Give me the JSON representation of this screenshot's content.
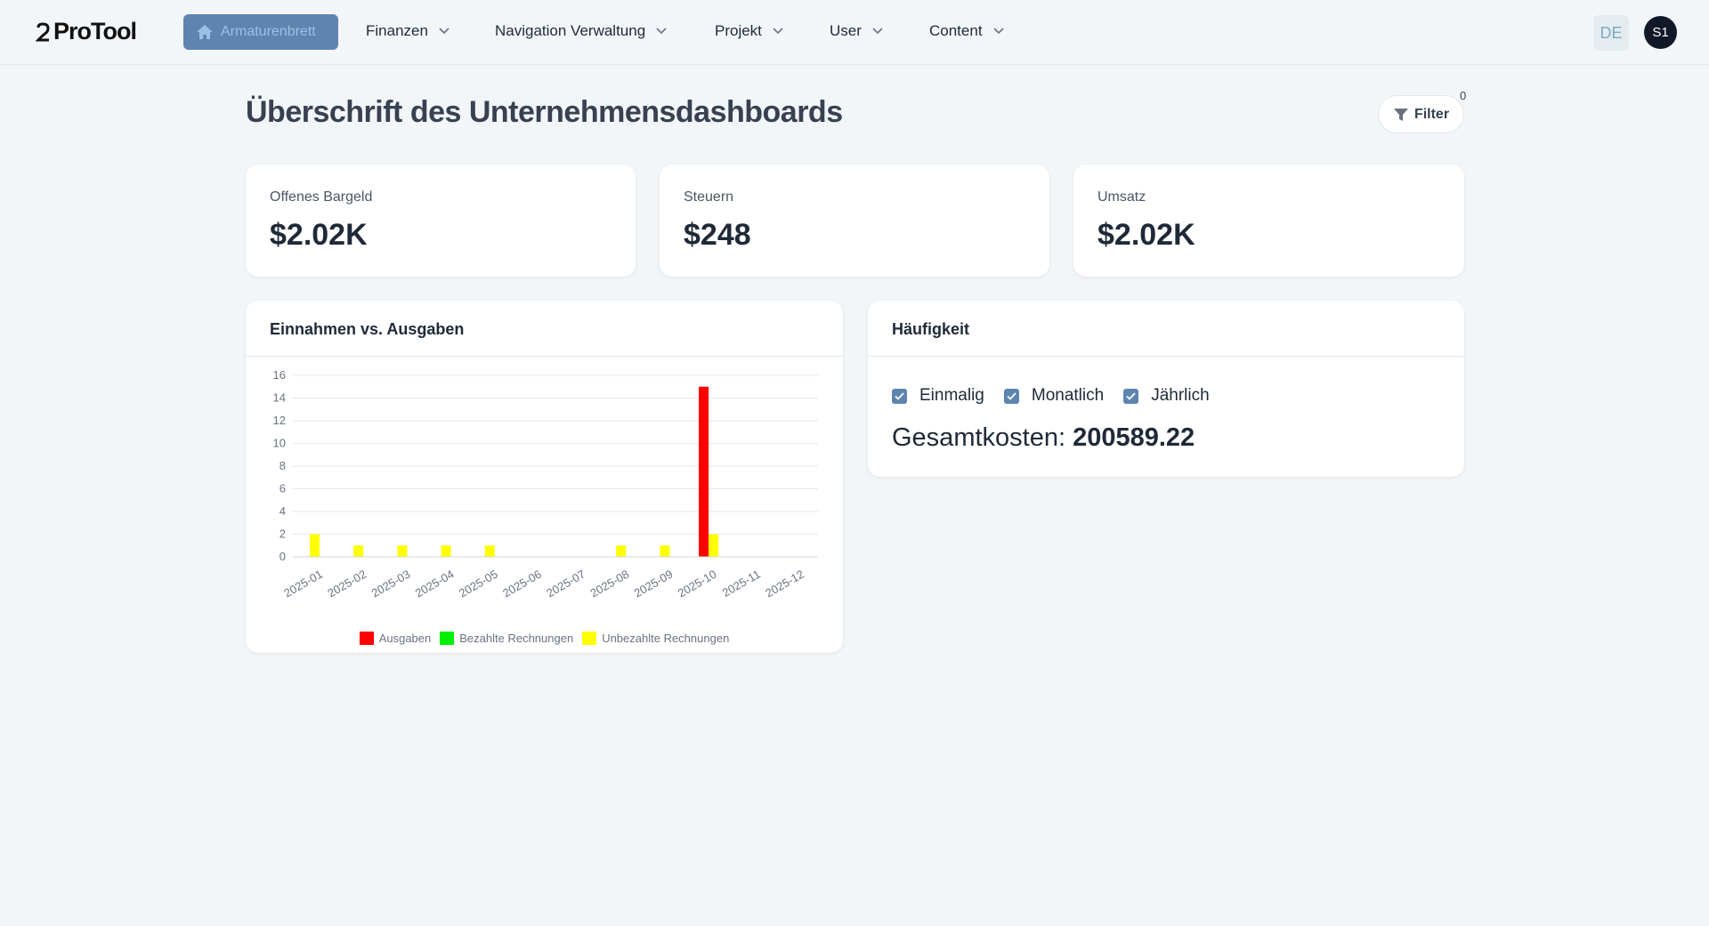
{
  "brand": {
    "logo_text": "ProTool"
  },
  "nav": {
    "active": "Armaturenbrett",
    "items": [
      "Finanzen",
      "Navigation Verwaltung",
      "Projekt",
      "User",
      "Content"
    ],
    "language": "DE",
    "avatar": "S1"
  },
  "header": {
    "title": "Überschrift des Unternehmensdashboards",
    "filter_label": "Filter",
    "filter_count": "0"
  },
  "stats": [
    {
      "label": "Offenes Bargeld",
      "value": "$2.02K"
    },
    {
      "label": "Steuern",
      "value": "$248"
    },
    {
      "label": "Umsatz",
      "value": "$2.02K"
    }
  ],
  "chart_card": {
    "title": "Einnahmen vs. Ausgaben"
  },
  "frequency": {
    "title": "Häufigkeit",
    "options": [
      "Einmalig",
      "Monatlich",
      "Jährlich"
    ],
    "total_label": "Gesamtkosten:",
    "total_value": "200589.22"
  },
  "colors": {
    "accent": "#5f84b0",
    "ausgaben": "#ff0000",
    "bezahlt": "#00ee00",
    "unbezahlt": "#ffff00"
  },
  "chart_data": {
    "type": "bar",
    "categories": [
      "2025-01",
      "2025-02",
      "2025-03",
      "2025-04",
      "2025-05",
      "2025-06",
      "2025-07",
      "2025-08",
      "2025-09",
      "2025-10",
      "2025-11",
      "2025-12"
    ],
    "series": [
      {
        "name": "Ausgaben",
        "color": "#ff0000",
        "values": [
          0,
          0,
          0,
          0,
          0,
          0,
          0,
          0,
          0,
          15,
          0,
          0
        ]
      },
      {
        "name": "Bezahlte Rechnungen",
        "color": "#00ee00",
        "values": [
          0,
          0,
          0,
          0,
          0,
          0,
          0,
          0,
          0,
          0,
          0,
          0
        ]
      },
      {
        "name": "Unbezahlte Rechnungen",
        "color": "#ffff00",
        "values": [
          2,
          1,
          1,
          1,
          1,
          0,
          0,
          1,
          1,
          2,
          0,
          0
        ]
      }
    ],
    "yticks": [
      0,
      2,
      4,
      6,
      8,
      10,
      12,
      14,
      16
    ],
    "ylim": [
      0,
      16
    ],
    "grid": true,
    "legend": "bottom"
  }
}
